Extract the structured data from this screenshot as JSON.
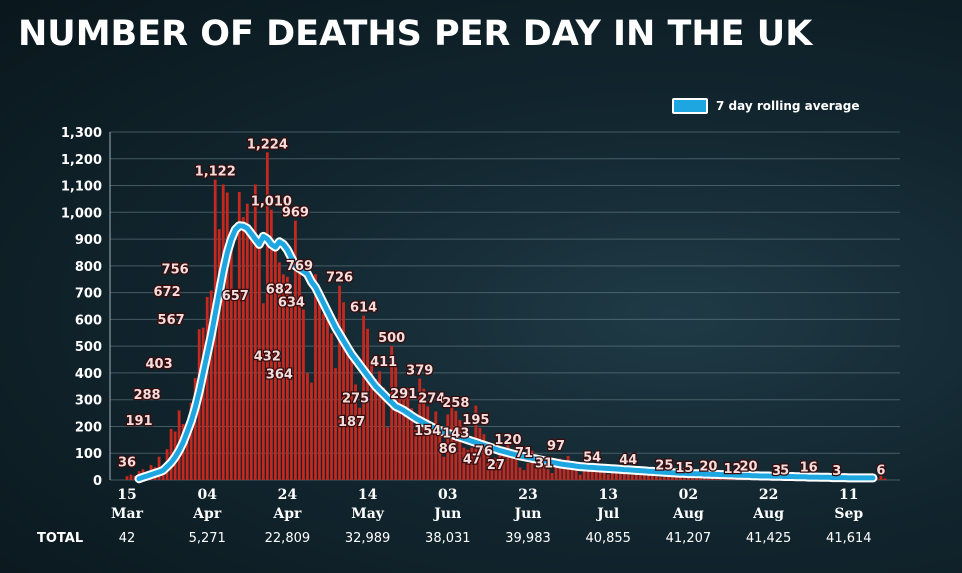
{
  "title": "NUMBER OF DEATHS PER DAY IN THE UK",
  "legend": {
    "label": "7 day rolling average",
    "color": "#1ea6e0"
  },
  "colors": {
    "bar": "#c4281e",
    "avg_line": "#1ea6e0",
    "avg_outline": "#ffffff"
  },
  "chart_data": {
    "type": "bar",
    "title": "NUMBER OF DEATHS PER DAY IN THE UK",
    "ylim": [
      0,
      1300
    ],
    "y_ticks": [
      0,
      100,
      200,
      300,
      400,
      500,
      600,
      700,
      800,
      900,
      1000,
      1100,
      1200,
      1300
    ],
    "y_tick_labels": [
      "0",
      "100",
      "200",
      "300",
      "400",
      "500",
      "600",
      "700",
      "800",
      "900",
      "1,000",
      "1,100",
      "1,200",
      "1,300"
    ],
    "grid": true,
    "legend_position": "top-right",
    "start_date": "2020-03-15",
    "x_ticks": [
      {
        "day": 0,
        "top": "15",
        "bottom": "Mar",
        "total": "42"
      },
      {
        "day": 20,
        "top": "04",
        "bottom": "Apr",
        "total": "5,271"
      },
      {
        "day": 40,
        "top": "24",
        "bottom": "Apr",
        "total": "22,809"
      },
      {
        "day": 60,
        "top": "14",
        "bottom": "May",
        "total": "32,989"
      },
      {
        "day": 80,
        "top": "03",
        "bottom": "Jun",
        "total": "38,031"
      },
      {
        "day": 100,
        "top": "23",
        "bottom": "Jun",
        "total": "39,983"
      },
      {
        "day": 120,
        "top": "13",
        "bottom": "Jul",
        "total": "40,855"
      },
      {
        "day": 140,
        "top": "02",
        "bottom": "Aug",
        "total": "41,207"
      },
      {
        "day": 160,
        "top": "22",
        "bottom": "Aug",
        "total": "41,425"
      },
      {
        "day": 180,
        "top": "11",
        "bottom": "Sep",
        "total": "41,614"
      }
    ],
    "totals_label": "TOTAL",
    "series": [
      {
        "name": "Deaths per day",
        "type": "bar",
        "values": [
          14,
          20,
          16,
          33,
          40,
          33,
          56,
          48,
          87,
          41,
          115,
          191,
          181,
          260,
          209,
          180,
          288,
          381,
          563,
          569,
          684,
          708,
          1122,
          937,
          1104,
          1074,
          857,
          671,
          1076,
          982,
          1032,
          921,
          1104,
          866,
          660,
          1224,
          1010,
          869,
          813,
          768,
          759,
          682,
          969,
          794,
          637,
          400,
          364,
          769,
          693,
          621,
          638,
          548,
          418,
          726,
          664,
          507,
          467,
          357,
          270,
          614,
          565,
          441,
          377,
          406,
          346,
          197,
          500,
          431,
          319,
          324,
          344,
          268,
          187,
          379,
          341,
          275,
          211,
          256,
          191,
          87,
          245,
          300,
          258,
          224,
          121,
          113,
          121,
          278,
          195,
          171,
          116,
          67,
          84,
          97,
          103,
          143,
          109,
          93,
          47,
          37,
          63,
          110,
          75,
          81,
          53,
          40,
          26,
          59,
          80,
          74,
          90,
          49,
          45,
          20,
          39,
          56,
          63,
          40,
          54,
          28,
          21,
          43,
          41,
          32,
          40,
          31,
          18,
          22,
          48,
          19,
          28,
          26,
          30,
          10,
          11,
          15,
          20,
          34,
          25,
          25,
          14,
          12,
          27,
          36,
          22,
          20,
          14,
          8,
          6,
          11,
          16,
          26,
          14,
          14,
          2,
          10,
          6,
          16,
          17,
          14,
          12,
          10,
          3,
          3,
          9,
          11,
          14,
          12,
          6,
          4,
          3,
          10,
          13,
          11,
          9,
          3,
          4,
          5,
          4,
          11,
          12,
          2,
          9,
          7,
          3,
          3,
          7,
          8,
          15,
          6
        ]
      },
      {
        "name": "7 day rolling average",
        "type": "line",
        "values": [
          5,
          10,
          15,
          20,
          25,
          30,
          36,
          50,
          65,
          85,
          110,
          140,
          180,
          220,
          270,
          330,
          400,
          470,
          540,
          620,
          700,
          780,
          850,
          900,
          935,
          950,
          948,
          940,
          920,
          900,
          880,
          910,
          900,
          880,
          870,
          890,
          880,
          860,
          830,
          800,
          790,
          780,
          770,
          740,
          720,
          690,
          660,
          630,
          600,
          570,
          545,
          520,
          495,
          470,
          450,
          430,
          410,
          390,
          370,
          350,
          335,
          320,
          305,
          290,
          275,
          268,
          260,
          250,
          240,
          230,
          222,
          214,
          206,
          198,
          190,
          185,
          180,
          175,
          170,
          165,
          160,
          155,
          150,
          145,
          140,
          135,
          130,
          125,
          120,
          115,
          110,
          106,
          102,
          98,
          94,
          90,
          87,
          84,
          81,
          78,
          75,
          72,
          69,
          66,
          63,
          60,
          58,
          56,
          54,
          52,
          50,
          49,
          48,
          47,
          46,
          45,
          44,
          43,
          42,
          41,
          40,
          39,
          38,
          37,
          36,
          35,
          34,
          33,
          32,
          31,
          30,
          29,
          28,
          27,
          26,
          25,
          25,
          24,
          24,
          23,
          23,
          22,
          22,
          21,
          21,
          20,
          20,
          19,
          19,
          18,
          18,
          17,
          17,
          16,
          16,
          15,
          15,
          15,
          14,
          14,
          14,
          13,
          13,
          13,
          12,
          12,
          12,
          11,
          11,
          11,
          10,
          10,
          10,
          9,
          9,
          9,
          9,
          8,
          8,
          8,
          8,
          8,
          8,
          8
        ]
      }
    ],
    "annotations": [
      {
        "day": 0,
        "value": 36,
        "text": "36"
      },
      {
        "day": 3,
        "value": 191,
        "text": "191"
      },
      {
        "day": 5,
        "value": 288,
        "text": "288"
      },
      {
        "day": 8,
        "value": 403,
        "text": "403"
      },
      {
        "day": 11,
        "value": 567,
        "text": "567"
      },
      {
        "day": 10,
        "value": 672,
        "text": "672"
      },
      {
        "day": 12,
        "value": 756,
        "text": "756"
      },
      {
        "day": 22,
        "value": 1122,
        "text": "1,122"
      },
      {
        "day": 27,
        "value": 657,
        "text": "657"
      },
      {
        "day": 35,
        "value": 1224,
        "text": "1,224"
      },
      {
        "day": 36,
        "value": 1010,
        "text": "1,010"
      },
      {
        "day": 42,
        "value": 969,
        "text": "969"
      },
      {
        "day": 43,
        "value": 769,
        "text": "769"
      },
      {
        "day": 38,
        "value": 682,
        "text": "682"
      },
      {
        "day": 41,
        "value": 634,
        "text": "634"
      },
      {
        "day": 35,
        "value": 432,
        "text": "432"
      },
      {
        "day": 38,
        "value": 364,
        "text": "364"
      },
      {
        "day": 53,
        "value": 726,
        "text": "726"
      },
      {
        "day": 59,
        "value": 614,
        "text": "614"
      },
      {
        "day": 66,
        "value": 500,
        "text": "500"
      },
      {
        "day": 64,
        "value": 411,
        "text": "411"
      },
      {
        "day": 73,
        "value": 379,
        "text": "379"
      },
      {
        "day": 57,
        "value": 275,
        "text": "275"
      },
      {
        "day": 69,
        "value": 291,
        "text": "291"
      },
      {
        "day": 76,
        "value": 274,
        "text": "274"
      },
      {
        "day": 56,
        "value": 187,
        "text": "187"
      },
      {
        "day": 82,
        "value": 258,
        "text": "258"
      },
      {
        "day": 75,
        "value": 154,
        "text": "154"
      },
      {
        "day": 82,
        "value": 143,
        "text": "143"
      },
      {
        "day": 87,
        "value": 195,
        "text": "195"
      },
      {
        "day": 80,
        "value": 86,
        "text": "86"
      },
      {
        "day": 86,
        "value": 47,
        "text": "47"
      },
      {
        "day": 89,
        "value": 76,
        "text": "76"
      },
      {
        "day": 92,
        "value": 27,
        "text": "27"
      },
      {
        "day": 95,
        "value": 120,
        "text": "120"
      },
      {
        "day": 99,
        "value": 71,
        "text": "71"
      },
      {
        "day": 104,
        "value": 31,
        "text": "31"
      },
      {
        "day": 107,
        "value": 97,
        "text": "97"
      },
      {
        "day": 116,
        "value": 54,
        "text": "54"
      },
      {
        "day": 125,
        "value": 44,
        "text": "44"
      },
      {
        "day": 134,
        "value": 25,
        "text": "25"
      },
      {
        "day": 139,
        "value": 15,
        "text": "15"
      },
      {
        "day": 145,
        "value": 20,
        "text": "20"
      },
      {
        "day": 151,
        "value": 12,
        "text": "12"
      },
      {
        "day": 155,
        "value": 20,
        "text": "20"
      },
      {
        "day": 162,
        "value": 3,
        "text": "3"
      },
      {
        "day": 164,
        "value": 5,
        "text": "5"
      },
      {
        "day": 170,
        "value": 16,
        "text": "16"
      },
      {
        "day": 177,
        "value": 3,
        "text": "3"
      },
      {
        "day": 188,
        "value": 6,
        "text": "6"
      }
    ]
  }
}
